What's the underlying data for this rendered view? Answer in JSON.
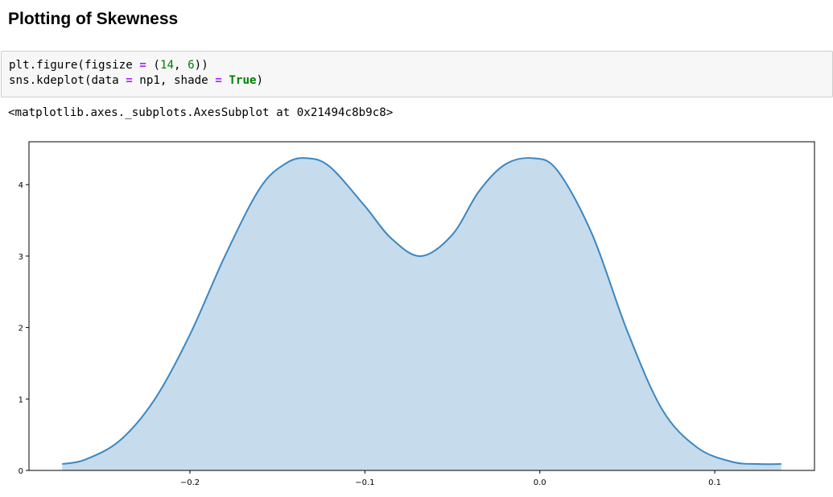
{
  "heading": "Plotting of Skewness",
  "code": {
    "line1": {
      "a": "plt.figure(figsize ",
      "op": "=",
      "b": " (",
      "n1": "14",
      "c": ", ",
      "n2": "6",
      "d": "))"
    },
    "line2": {
      "a": "sns.kdeplot(data ",
      "op1": "=",
      "b": " np1, shade ",
      "op2": "=",
      "c": " ",
      "kw": "True",
      "d": ")"
    }
  },
  "output": "<matplotlib.axes._subplots.AxesSubplot at 0x21494c8b9c8>",
  "chart_data": {
    "type": "area",
    "x": [
      -0.273,
      -0.26,
      -0.24,
      -0.22,
      -0.2,
      -0.18,
      -0.16,
      -0.145,
      -0.133,
      -0.12,
      -0.1,
      -0.085,
      -0.068,
      -0.05,
      -0.035,
      -0.02,
      -0.004,
      0.01,
      0.03,
      0.05,
      0.07,
      0.09,
      0.11,
      0.125,
      0.138
    ],
    "y": [
      0.09,
      0.15,
      0.42,
      1.0,
      1.9,
      3.0,
      3.95,
      4.3,
      4.37,
      4.25,
      3.7,
      3.25,
      3.0,
      3.3,
      3.9,
      4.28,
      4.37,
      4.2,
      3.3,
      1.95,
      0.85,
      0.32,
      0.12,
      0.09,
      0.09
    ],
    "xlim": [
      -0.292,
      0.157
    ],
    "ylim": [
      0,
      4.6
    ],
    "xticks": [
      -0.2,
      -0.1,
      0.0,
      0.1
    ],
    "xtick_labels": [
      "−0.2",
      "−0.1",
      "0.0",
      "0.1"
    ],
    "yticks": [
      0,
      1,
      2,
      3,
      4
    ],
    "ytick_labels": [
      "0",
      "1",
      "2",
      "3",
      "4"
    ],
    "line_color": "#3a87c2",
    "fill_color": "#c6dbec",
    "grid": false,
    "title": "",
    "xlabel": "",
    "ylabel": ""
  }
}
